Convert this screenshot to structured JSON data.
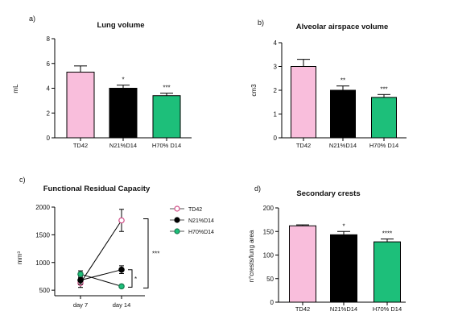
{
  "chart_data": [
    {
      "id": "a",
      "panel_label": "a)",
      "type": "bar",
      "title": "Lung volume",
      "ylabel": "mL",
      "categories": [
        "TD42",
        "N21%D14",
        "H70% D14"
      ],
      "values": [
        5.3,
        4.0,
        3.4
      ],
      "errors": [
        0.5,
        0.25,
        0.2
      ],
      "significance": [
        "",
        "*",
        "***"
      ],
      "colors": [
        "#f9bedc",
        "#000000",
        "#1dbf7a"
      ],
      "ylim": [
        0,
        8
      ],
      "yticks": [
        0,
        2,
        4,
        6,
        8
      ]
    },
    {
      "id": "b",
      "panel_label": "b)",
      "type": "bar",
      "title": "Alveolar airspace volume",
      "ylabel": "cm3",
      "categories": [
        "TD42",
        "N21%D14",
        "H70% D14"
      ],
      "values": [
        3.0,
        2.0,
        1.7
      ],
      "errors": [
        0.3,
        0.18,
        0.12
      ],
      "significance": [
        "",
        "**",
        "***"
      ],
      "colors": [
        "#f9bedc",
        "#000000",
        "#1dbf7a"
      ],
      "ylim": [
        0,
        4
      ],
      "yticks": [
        0,
        1,
        2,
        3,
        4
      ]
    },
    {
      "id": "c",
      "panel_label": "c)",
      "type": "line",
      "title": "Functional Residual Capacity",
      "ylabel": "mm³",
      "x": [
        "day 7",
        "day 14"
      ],
      "series": [
        {
          "name": "TD42",
          "values": [
            630,
            1760
          ],
          "errors": [
            80,
            200
          ],
          "color": "#d14b86",
          "fill": "#ffffff"
        },
        {
          "name": "N21%D14",
          "values": [
            680,
            870
          ],
          "errors": [
            70,
            70
          ],
          "color": "#000000",
          "fill": "#000000"
        },
        {
          "name": "H70%D14",
          "values": [
            790,
            570
          ],
          "errors": [
            60,
            30
          ],
          "color": "#1a7a4f",
          "fill": "#1dbf7a"
        }
      ],
      "brackets": [
        {
          "label": "***"
        },
        {
          "label": "*"
        }
      ],
      "ylim": [
        400,
        2000
      ],
      "yticks": [
        500,
        1000,
        1500,
        2000
      ]
    },
    {
      "id": "d",
      "panel_label": "d)",
      "type": "bar",
      "title": "Secondary crests",
      "ylabel": "n°crests/lung area",
      "categories": [
        "TD42",
        "N21%D14",
        "H70% D14"
      ],
      "values": [
        162,
        143,
        128
      ],
      "errors": [
        2,
        7,
        6
      ],
      "significance": [
        "",
        "*",
        "****"
      ],
      "colors": [
        "#f9bedc",
        "#000000",
        "#1dbf7a"
      ],
      "ylim": [
        0,
        200
      ],
      "yticks": [
        0,
        50,
        100,
        150,
        200
      ]
    }
  ]
}
